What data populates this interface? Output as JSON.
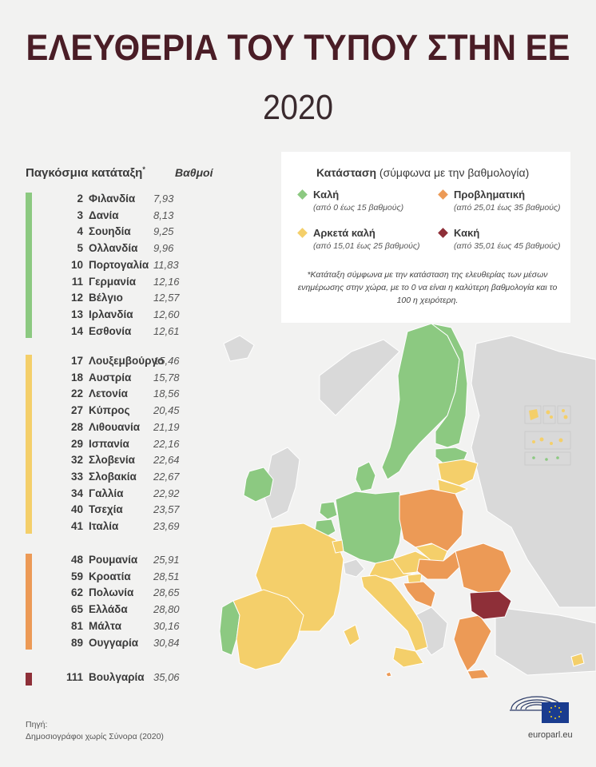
{
  "title": "ΕΛΕΥΘΕΡΙΑ ΤΟΥ ΤΥΠΟΥ ΣΤΗΝ ΕΕ",
  "year": "2020",
  "ranking_header": "Παγκόσμια κατάταξη",
  "ranking_header_mark": "*",
  "score_header": "Βαθμοί",
  "colors": {
    "good": "#8cc981",
    "fairly_good": "#f4cf6a",
    "problematic": "#ec9a56",
    "bad": "#8e2f38",
    "neutral": "#d8d8d8",
    "ink": "#4a1d26"
  },
  "groups": [
    {
      "category": "good",
      "rows": [
        {
          "rank": "2",
          "country": "Φιλανδία",
          "score": "7,93"
        },
        {
          "rank": "3",
          "country": "Δανία",
          "score": "8,13"
        },
        {
          "rank": "4",
          "country": "Σουηδία",
          "score": "9,25"
        },
        {
          "rank": "5",
          "country": "Ολλανδία",
          "score": "9,96"
        },
        {
          "rank": "10",
          "country": "Πορτογαλία",
          "score": "11,83"
        },
        {
          "rank": "11",
          "country": "Γερμανία",
          "score": "12,16"
        },
        {
          "rank": "12",
          "country": "Βέλγιο",
          "score": "12,57"
        },
        {
          "rank": "13",
          "country": "Ιρλανδία",
          "score": "12,60"
        },
        {
          "rank": "14",
          "country": "Εσθονία",
          "score": "12,61"
        }
      ]
    },
    {
      "category": "fairly_good",
      "rows": [
        {
          "rank": "17",
          "country": "Λουξεμβούργο",
          "score": "15,46"
        },
        {
          "rank": "18",
          "country": "Αυστρία",
          "score": "15,78"
        },
        {
          "rank": "22",
          "country": "Λετονία",
          "score": "18,56"
        },
        {
          "rank": "27",
          "country": "Κύπρος",
          "score": "20,45"
        },
        {
          "rank": "28",
          "country": "Λιθουανία",
          "score": "21,19"
        },
        {
          "rank": "29",
          "country": "Ισπανία",
          "score": "22,16"
        },
        {
          "rank": "32",
          "country": "Σλοβενία",
          "score": "22,64"
        },
        {
          "rank": "33",
          "country": "Σλοβακία",
          "score": "22,67"
        },
        {
          "rank": "34",
          "country": "Γαλλία",
          "score": "22,92"
        },
        {
          "rank": "40",
          "country": "Τσεχία",
          "score": "23,57"
        },
        {
          "rank": "41",
          "country": "Ιταλία",
          "score": "23,69"
        }
      ]
    },
    {
      "category": "problematic",
      "rows": [
        {
          "rank": "48",
          "country": "Ρουμανία",
          "score": "25,91"
        },
        {
          "rank": "59",
          "country": "Κροατία",
          "score": "28,51"
        },
        {
          "rank": "62",
          "country": "Πολωνία",
          "score": "28,65"
        },
        {
          "rank": "65",
          "country": "Ελλάδα",
          "score": "28,80"
        },
        {
          "rank": "81",
          "country": "Μάλτα",
          "score": "30,16"
        },
        {
          "rank": "89",
          "country": "Ουγγαρία",
          "score": "30,84"
        }
      ]
    },
    {
      "category": "bad",
      "rows": [
        {
          "rank": "111",
          "country": "Βουλγαρία",
          "score": "35,06"
        }
      ]
    }
  ],
  "legend": {
    "title_bold": "Κατάσταση",
    "title_rest": "(σύμφωνα με την βαθμολογία)",
    "items": [
      {
        "key": "good",
        "label": "Καλή",
        "range": "(από 0 έως 15 βαθμούς)"
      },
      {
        "key": "problematic",
        "label": "Προβληματική",
        "range": "(από 25,01 έως 35 βαθμούς)"
      },
      {
        "key": "fairly_good",
        "label": "Αρκετά καλή",
        "range": "(από 15,01 έως 25 βαθμούς)"
      },
      {
        "key": "bad",
        "label": "Κακή",
        "range": "(από 35,01 έως 45 βαθμούς)"
      }
    ],
    "note": "*Κατάταξη σύμφωνα με την κατάσταση της ελευθερίας των μέσων ενημέρωσης στην χώρα, με το 0 να είναι η καλύτερη βαθμολογία και το 100 η χειρότερη."
  },
  "source_label": "Πηγή:",
  "source_text": "Δημοσιογράφοι χωρίς Σύνορα (2020)",
  "website": "europarl.eu"
}
